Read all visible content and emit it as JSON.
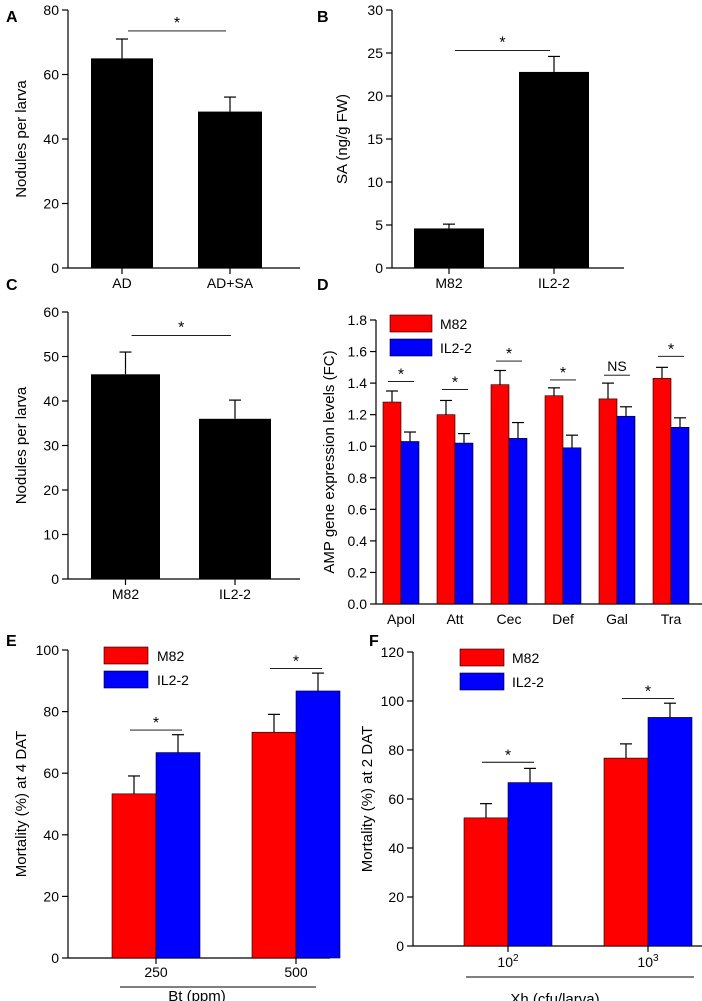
{
  "colors": {
    "black": "#000000",
    "red": "#ff0000",
    "blue": "#0000ff",
    "line": "#000000"
  },
  "chart_data": [
    {
      "panel": "A",
      "type": "bar",
      "categories": [
        "AD",
        "AD+SA"
      ],
      "values": [
        65,
        48.5
      ],
      "errors": [
        6,
        4.5
      ],
      "ylabel": "Nodules per larva",
      "ylim": [
        0,
        80
      ],
      "yticks": [
        0,
        20,
        40,
        60,
        80
      ],
      "ytick_labels": [
        "0",
        "20",
        "40",
        "60",
        "80"
      ],
      "significance": [
        {
          "from": 0,
          "to": 1,
          "label": "*",
          "level": 73.5
        }
      ]
    },
    {
      "panel": "B",
      "type": "bar",
      "categories": [
        "M82",
        "IL2-2"
      ],
      "values": [
        4.6,
        22.8
      ],
      "errors": [
        0.5,
        1.8
      ],
      "ylabel": "SA (ng/g FW)",
      "ylim": [
        0,
        30
      ],
      "yticks": [
        0,
        5,
        10,
        15,
        20,
        25,
        30
      ],
      "ytick_labels": [
        "0",
        "5",
        "10",
        "15",
        "20",
        "25",
        "30"
      ],
      "significance": [
        {
          "from": 0,
          "to": 1,
          "label": "*",
          "level": 25.3
        }
      ]
    },
    {
      "panel": "C",
      "type": "bar",
      "categories": [
        "M82",
        "IL2-2"
      ],
      "values": [
        46,
        36
      ],
      "errors": [
        5,
        4.2
      ],
      "ylabel": "Nodules per larva",
      "ylim": [
        0,
        60
      ],
      "yticks": [
        0,
        10,
        20,
        30,
        40,
        50,
        60
      ],
      "ytick_labels": [
        "0",
        "10",
        "20",
        "30",
        "40",
        "50",
        "60"
      ],
      "significance": [
        {
          "from": 0,
          "to": 1,
          "label": "*",
          "level": 54.7
        }
      ]
    },
    {
      "panel": "D",
      "type": "bar",
      "categories": [
        "Apol",
        "Att",
        "Cec",
        "Def",
        "Gal",
        "Tra"
      ],
      "series": [
        {
          "name": "M82",
          "values": [
            1.28,
            1.2,
            1.39,
            1.32,
            1.3,
            1.43
          ],
          "errors": [
            0.07,
            0.09,
            0.09,
            0.05,
            0.1,
            0.07
          ]
        },
        {
          "name": "IL2-2",
          "values": [
            1.03,
            1.02,
            1.05,
            0.99,
            1.19,
            1.12
          ],
          "errors": [
            0.06,
            0.06,
            0.1,
            0.08,
            0.06,
            0.06
          ]
        }
      ],
      "ylabel": "AMP gene expression levels (FC)",
      "ylim": [
        0,
        1.8
      ],
      "yticks": [
        0,
        0.2,
        0.4,
        0.6,
        0.8,
        1.0,
        1.2,
        1.4,
        1.6,
        1.8
      ],
      "ytick_labels": [
        "0.0",
        "0.2",
        "0.4",
        "0.6",
        "0.8",
        "1.0",
        "1.2",
        "1.4",
        "1.6",
        "1.8"
      ],
      "legend": "top-left",
      "significance": [
        {
          "group": 0,
          "label": "*",
          "level": 1.41
        },
        {
          "group": 1,
          "label": "*",
          "level": 1.36
        },
        {
          "group": 2,
          "label": "*",
          "level": 1.54
        },
        {
          "group": 3,
          "label": "*",
          "level": 1.42
        },
        {
          "group": 4,
          "label": "NS",
          "level": 1.45
        },
        {
          "group": 5,
          "label": "*",
          "level": 1.57
        }
      ]
    },
    {
      "panel": "E",
      "type": "bar",
      "categories": [
        "250",
        "500"
      ],
      "series": [
        {
          "name": "M82",
          "values": [
            53.3,
            73.3
          ],
          "errors": [
            5.8,
            5.8
          ]
        },
        {
          "name": "IL2-2",
          "values": [
            66.7,
            86.7
          ],
          "errors": [
            5.8,
            5.8
          ]
        }
      ],
      "xlabel": "Bt (ppm)",
      "ylabel": "Mortality (%) at 4 DAT",
      "ylim": [
        0,
        100
      ],
      "yticks": [
        0,
        20,
        40,
        60,
        80,
        100
      ],
      "ytick_labels": [
        "0",
        "20",
        "40",
        "60",
        "80",
        "100"
      ],
      "legend": "top-left",
      "significance": [
        {
          "group": 0,
          "label": "*",
          "level": 74
        },
        {
          "group": 1,
          "label": "*",
          "level": 94
        }
      ]
    },
    {
      "panel": "F",
      "type": "bar",
      "categories": [
        "10",
        "10"
      ],
      "category_exponents": [
        "2",
        "3"
      ],
      "series": [
        {
          "name": "M82",
          "values": [
            52.3,
            76.7
          ],
          "errors": [
            5.8,
            5.8
          ]
        },
        {
          "name": "IL2-2",
          "values": [
            66.7,
            93.3
          ],
          "errors": [
            5.8,
            5.8
          ]
        }
      ],
      "xlabel": "Xh (cfu/larva)",
      "ylabel": "Mortality (%) at 2 DAT",
      "ylim": [
        0,
        120
      ],
      "yticks": [
        0,
        20,
        40,
        60,
        80,
        100,
        120
      ],
      "ytick_labels": [
        "0",
        "20",
        "40",
        "60",
        "80",
        "100",
        "120"
      ],
      "legend": "top-left",
      "significance": [
        {
          "group": 0,
          "label": "*",
          "level": 75
        },
        {
          "group": 1,
          "label": "*",
          "level": 101
        }
      ]
    }
  ]
}
